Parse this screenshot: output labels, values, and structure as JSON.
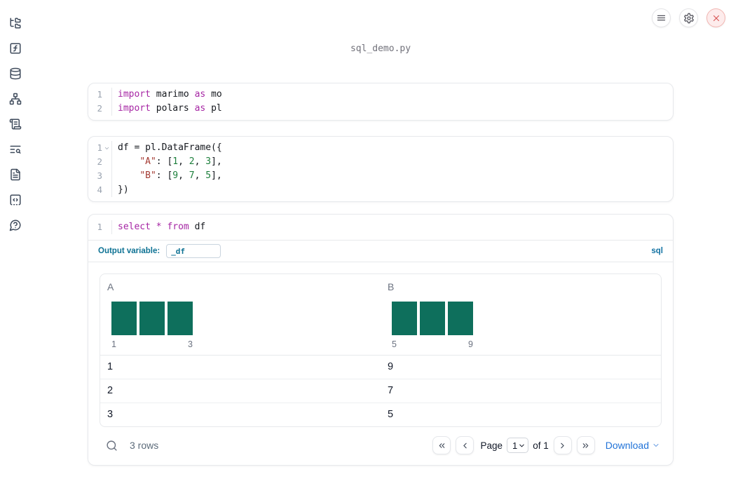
{
  "app": {
    "filename": "sql_demo.py"
  },
  "topbar": {
    "buttons": [
      {
        "icon": "menu-icon"
      },
      {
        "icon": "settings-icon"
      },
      {
        "icon": "close-icon"
      }
    ]
  },
  "sidebar": {
    "items": [
      {
        "icon": "folder-tree-icon"
      },
      {
        "icon": "square-function-icon"
      },
      {
        "icon": "database-icon"
      },
      {
        "icon": "network-icon"
      },
      {
        "icon": "scroll-text-icon"
      },
      {
        "icon": "text-search-icon"
      },
      {
        "icon": "file-text-icon"
      },
      {
        "icon": "square-code-icon"
      },
      {
        "icon": "help-circle-icon"
      }
    ]
  },
  "cells": [
    {
      "name": "imports-cell",
      "lines": [
        {
          "num": "1",
          "tokens": [
            [
              "import",
              "kw"
            ],
            [
              " marimo ",
              "pl"
            ],
            [
              "as",
              "kw"
            ],
            [
              " mo",
              "pl"
            ]
          ]
        },
        {
          "num": "2",
          "tokens": [
            [
              "import",
              "kw"
            ],
            [
              " polars ",
              "pl"
            ],
            [
              "as",
              "kw"
            ],
            [
              " pl",
              "pl"
            ]
          ]
        }
      ]
    },
    {
      "name": "dataframe-cell",
      "lines": [
        {
          "num": "1",
          "fold": true,
          "tokens": [
            [
              "df = pl.DataFrame({",
              "pl"
            ]
          ]
        },
        {
          "num": "2",
          "tokens": [
            [
              "    ",
              "pl"
            ],
            [
              "\"A\"",
              "str"
            ],
            [
              ": [",
              "pl"
            ],
            [
              "1",
              "num"
            ],
            [
              ", ",
              "pl"
            ],
            [
              "2",
              "num"
            ],
            [
              ", ",
              "pl"
            ],
            [
              "3",
              "num"
            ],
            [
              "],",
              "pl"
            ]
          ]
        },
        {
          "num": "3",
          "tokens": [
            [
              "    ",
              "pl"
            ],
            [
              "\"B\"",
              "str"
            ],
            [
              ": [",
              "pl"
            ],
            [
              "9",
              "num"
            ],
            [
              ", ",
              "pl"
            ],
            [
              "7",
              "num"
            ],
            [
              ", ",
              "pl"
            ],
            [
              "5",
              "num"
            ],
            [
              "],",
              "pl"
            ]
          ]
        },
        {
          "num": "4",
          "tokens": [
            [
              "})",
              "pl"
            ]
          ]
        }
      ]
    },
    {
      "name": "sql-cell",
      "lines": [
        {
          "num": "1",
          "tokens": [
            [
              "select",
              "kw"
            ],
            [
              " ",
              "pl"
            ],
            [
              "*",
              "kw"
            ],
            [
              " ",
              "pl"
            ],
            [
              "from",
              "kw"
            ],
            [
              " df",
              "pl"
            ]
          ]
        }
      ]
    }
  ],
  "sql_cell": {
    "output_variable_label": "Output variable:",
    "output_variable_value": "_df",
    "language_badge": "sql"
  },
  "chart_data": [
    {
      "type": "bar",
      "column": "A",
      "values": [
        1,
        1,
        1
      ],
      "x_first_label": "1",
      "x_last_label": "3",
      "bar_color": "#0e6f5c"
    },
    {
      "type": "bar",
      "column": "B",
      "values": [
        1,
        1,
        1
      ],
      "x_first_label": "5",
      "x_last_label": "9",
      "bar_color": "#0e6f5c"
    }
  ],
  "table": {
    "columns": [
      "A",
      "B"
    ],
    "rows": [
      [
        "1",
        "9"
      ],
      [
        "2",
        "7"
      ],
      [
        "3",
        "5"
      ]
    ],
    "footer": {
      "row_count": "3 rows",
      "page_label": "Page",
      "page_value": "1",
      "of_label": "of 1",
      "download_label": "Download"
    }
  },
  "colors": {
    "accent_teal": "#0e7294",
    "histogram": "#0e6f5c",
    "keyword": "#a626a4",
    "string": "#a43a32",
    "number": "#1d7f3c",
    "download_link": "#2173d8"
  }
}
